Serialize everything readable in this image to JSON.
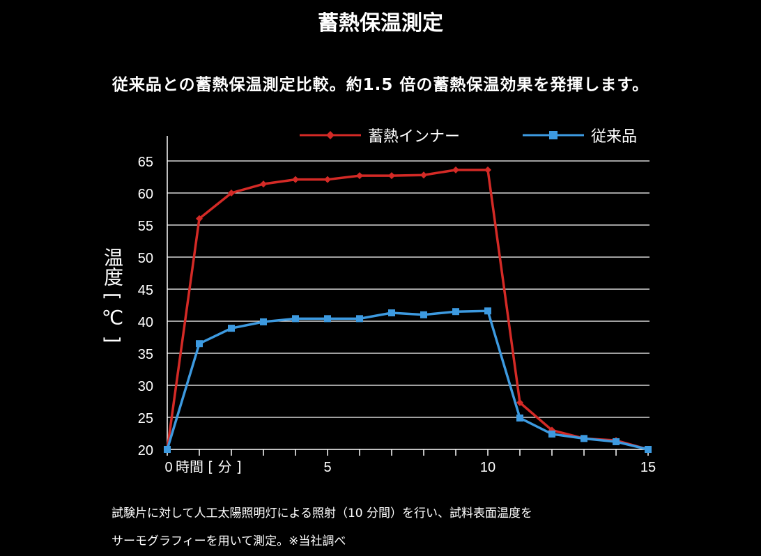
{
  "header": {
    "title": "蓄熱保温測定",
    "subtitle": "従来品との蓄熱保温測定比較。約1.5 倍の蓄熱保温効果を発揮します。"
  },
  "chart_data": {
    "type": "line",
    "xlabel": "時間 [ 分 ]",
    "ylabel": "温度 [ ℃ ]",
    "x": [
      0,
      1,
      2,
      3,
      4,
      5,
      6,
      7,
      8,
      9,
      10,
      11,
      12,
      13,
      14,
      15
    ],
    "xlim": [
      0,
      15
    ],
    "ylim": [
      20,
      65
    ],
    "x_tick_labels": [
      "0",
      "5",
      "10",
      "15"
    ],
    "y_ticks": [
      20,
      25,
      30,
      35,
      40,
      45,
      50,
      55,
      60,
      65
    ],
    "grid": true,
    "legend_position": "top",
    "series": [
      {
        "name": "蓄熱インナー",
        "color": "#d42a26",
        "marker": "diamond",
        "values": [
          20,
          56,
          60,
          61.4,
          62.1,
          62.1,
          62.7,
          62.7,
          62.8,
          63.6,
          63.6,
          27.3,
          23,
          21.7,
          21.4,
          20
        ]
      },
      {
        "name": "従来品",
        "color": "#3d9ae0",
        "marker": "square",
        "values": [
          20,
          36.5,
          38.9,
          39.9,
          40.4,
          40.4,
          40.4,
          41.3,
          41,
          41.5,
          41.6,
          24.9,
          22.4,
          21.7,
          21.2,
          20
        ]
      }
    ]
  },
  "footnote": {
    "line1": "試験片に対して人工太陽照明灯による照射（10 分間）を行い、試料表面温度を",
    "line2": "サーモグラフィーを用いて測定。※当社調べ"
  }
}
